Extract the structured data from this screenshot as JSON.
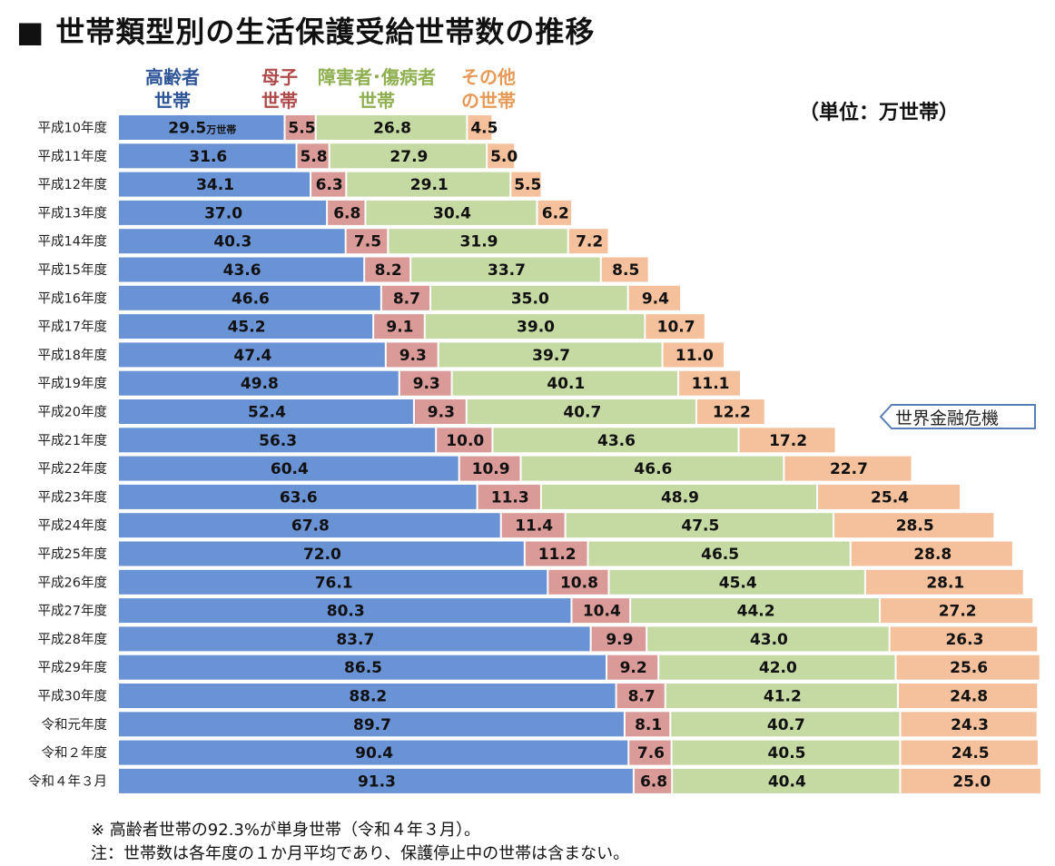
{
  "title": "■ 世帯類型別の生活保護受給世帯数の推移",
  "unit_label": "（単位：万世帯）",
  "first_value_unit": "万世帯",
  "legend": [
    {
      "line1": "高齢者",
      "line2": "世帯",
      "color": "#2e5597"
    },
    {
      "line1": "母子",
      "line2": "世帯",
      "color": "#b04a4a"
    },
    {
      "line1": "障害者･傷病者",
      "line2": "世帯",
      "color": "#8fb050"
    },
    {
      "line1": "その他",
      "line2": "の世帯",
      "color": "#e79a57"
    }
  ],
  "annotation": "世界金融危機",
  "notes": [
    "※ 高齢者世帯の92.3%が単身世帯（令和４年３月）。",
    "注：世帯数は各年度の１か月平均であり、保護停止中の世帯は含まない。"
  ],
  "colors": {
    "elderly": "#6a93d6",
    "single_mother": "#d99a98",
    "disabled": "#c5d9a3",
    "other": "#f4c19c"
  },
  "chart_data": {
    "type": "bar",
    "orientation": "horizontal",
    "stacked": true,
    "categories": [
      "平成10年度",
      "平成11年度",
      "平成12年度",
      "平成13年度",
      "平成14年度",
      "平成15年度",
      "平成16年度",
      "平成17年度",
      "平成18年度",
      "平成19年度",
      "平成20年度",
      "平成21年度",
      "平成22年度",
      "平成23年度",
      "平成24年度",
      "平成25年度",
      "平成26年度",
      "平成27年度",
      "平成28年度",
      "平成29年度",
      "平成30年度",
      "令和元年度",
      "令和２年度",
      "令和４年３月"
    ],
    "series": [
      {
        "name": "高齢者世帯",
        "values": [
          29.5,
          31.6,
          34.1,
          37.0,
          40.3,
          43.6,
          46.6,
          45.2,
          47.4,
          49.8,
          52.4,
          56.3,
          60.4,
          63.6,
          67.8,
          72.0,
          76.1,
          80.3,
          83.7,
          86.5,
          88.2,
          89.7,
          90.4,
          91.3
        ]
      },
      {
        "name": "母子世帯",
        "values": [
          5.5,
          5.8,
          6.3,
          6.8,
          7.5,
          8.2,
          8.7,
          9.1,
          9.3,
          9.3,
          9.3,
          10.0,
          10.9,
          11.3,
          11.4,
          11.2,
          10.8,
          10.4,
          9.9,
          9.2,
          8.7,
          8.1,
          7.6,
          6.8
        ]
      },
      {
        "name": "障害者･傷病者世帯",
        "values": [
          26.8,
          27.9,
          29.1,
          30.4,
          31.9,
          33.7,
          35.0,
          39.0,
          39.7,
          40.1,
          40.7,
          43.6,
          46.6,
          48.9,
          47.5,
          46.5,
          45.4,
          44.2,
          43.0,
          42.0,
          41.2,
          40.7,
          40.5,
          40.4
        ]
      },
      {
        "name": "その他の世帯",
        "values": [
          4.5,
          5.0,
          5.5,
          6.2,
          7.2,
          8.5,
          9.4,
          10.7,
          11.0,
          11.1,
          12.2,
          17.2,
          22.7,
          25.4,
          28.5,
          28.8,
          28.1,
          27.2,
          26.3,
          25.6,
          24.8,
          24.3,
          24.5,
          25.0
        ]
      }
    ]
  }
}
